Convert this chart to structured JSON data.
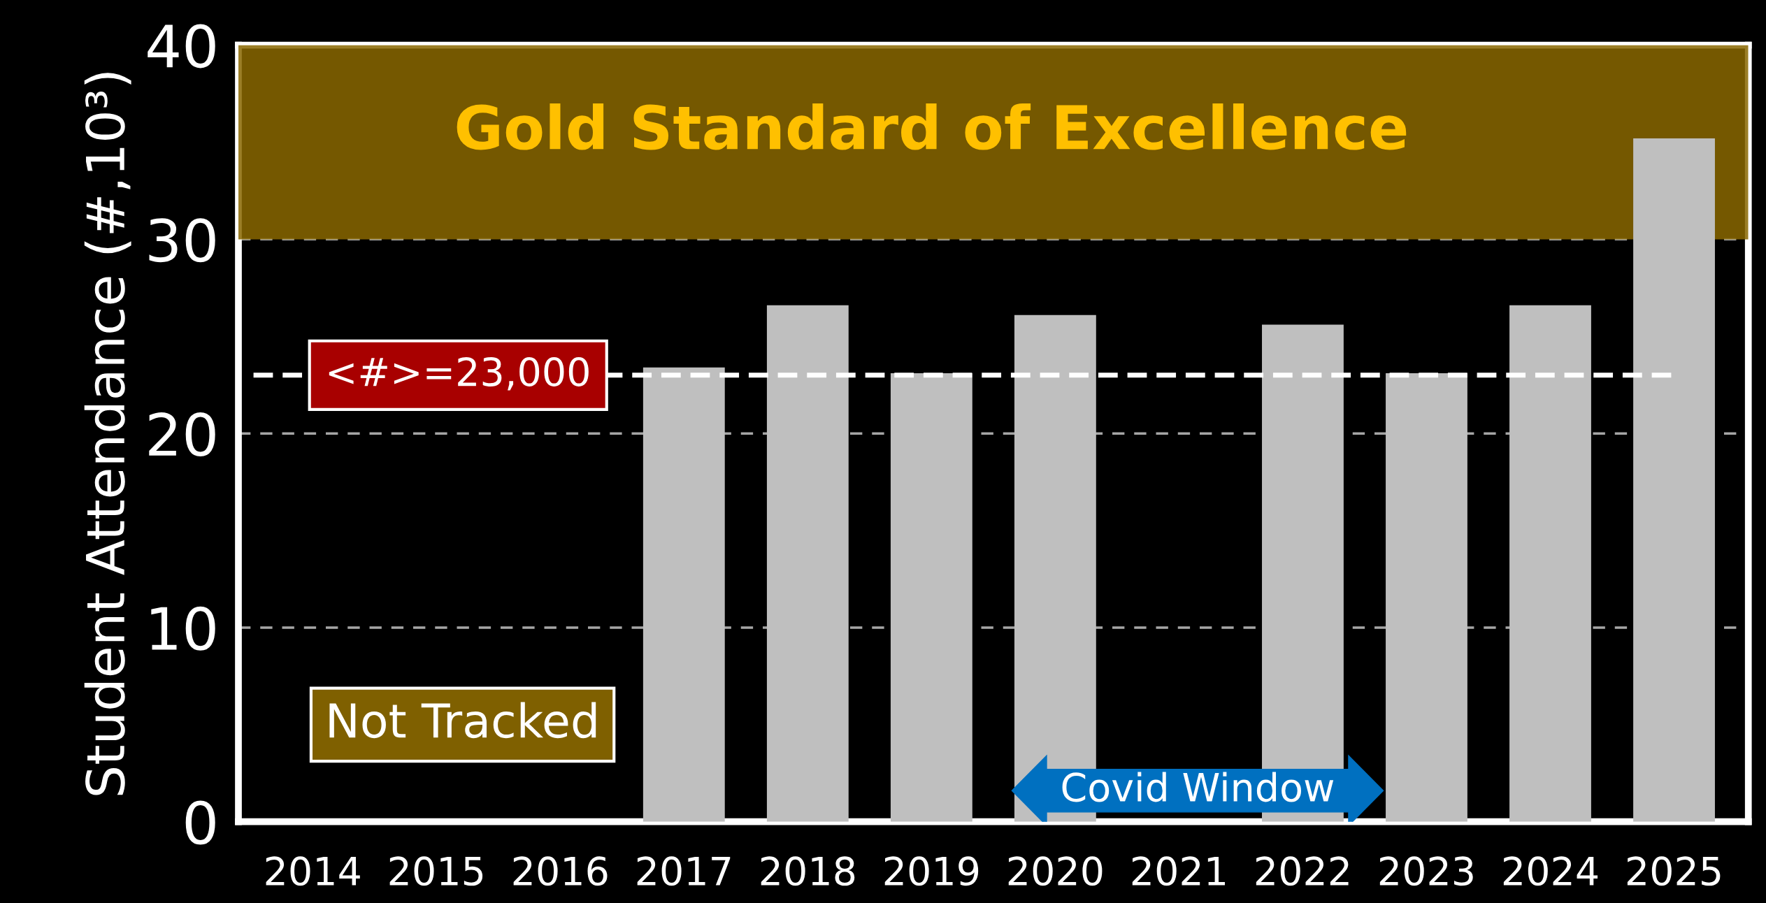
{
  "chart_data": {
    "type": "bar",
    "ylabel": "Student Attendance (#,10³)",
    "categories": [
      "2014",
      "2015",
      "2016",
      "2017",
      "2018",
      "2019",
      "2020",
      "2021",
      "2022",
      "2023",
      "2024",
      "2025"
    ],
    "values": [
      null,
      null,
      null,
      23.4,
      26.6,
      23.1,
      26.1,
      null,
      25.6,
      23.1,
      26.6,
      35.2
    ],
    "color": "#bfbfbf",
    "ylim": [
      0,
      40
    ],
    "yticks": [
      0,
      10,
      20,
      30,
      40
    ],
    "grid": "y",
    "ref_lines": [
      {
        "axis": "y",
        "value": 23,
        "label": "<#>=23,000",
        "color": "#ffffff",
        "line_style": "dashed"
      }
    ],
    "bands": [
      {
        "axis": "y",
        "from": 30,
        "to": 40,
        "label": "Gold Standard of Excellence",
        "color": "#8a6700"
      }
    ],
    "annotations": [
      "Not Tracked",
      "Covid Window"
    ]
  }
}
